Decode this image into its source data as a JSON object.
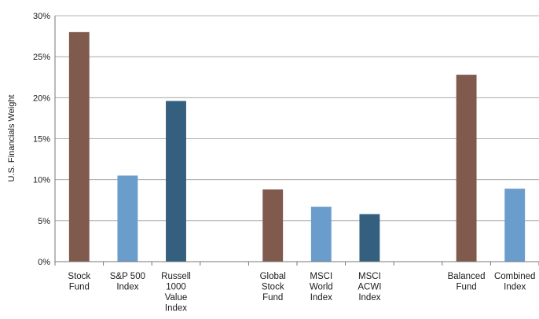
{
  "chart_data": {
    "type": "bar",
    "title": "",
    "xlabel": "",
    "ylabel": "U.S. Financials Weight",
    "ylim": [
      0,
      30
    ],
    "yticks": [
      "0%",
      "5%",
      "10%",
      "15%",
      "20%",
      "25%",
      "30%"
    ],
    "grid": true,
    "legend": "none",
    "categories": [
      {
        "label": "Stock\nFund",
        "value": 28.0,
        "color": "#7f5a4d"
      },
      {
        "label": "S&P 500\nIndex",
        "value": 10.5,
        "color": "#6a9ccc"
      },
      {
        "label": "Russell\n1000\nValue\nIndex",
        "value": 19.6,
        "color": "#355f7e"
      },
      {
        "label": "",
        "value": null,
        "color": null
      },
      {
        "label": "Global\nStock\nFund",
        "value": 8.8,
        "color": "#7f5a4d"
      },
      {
        "label": "MSCI\nWorld\nIndex",
        "value": 6.7,
        "color": "#6a9ccc"
      },
      {
        "label": "MSCI\nACWI\nIndex",
        "value": 5.8,
        "color": "#355f7e"
      },
      {
        "label": "",
        "value": null,
        "color": null
      },
      {
        "label": "Balanced\nFund",
        "value": 22.8,
        "color": "#7f5a4d"
      },
      {
        "label": "Combined\nIndex",
        "value": 8.9,
        "color": "#6a9ccc"
      }
    ]
  }
}
